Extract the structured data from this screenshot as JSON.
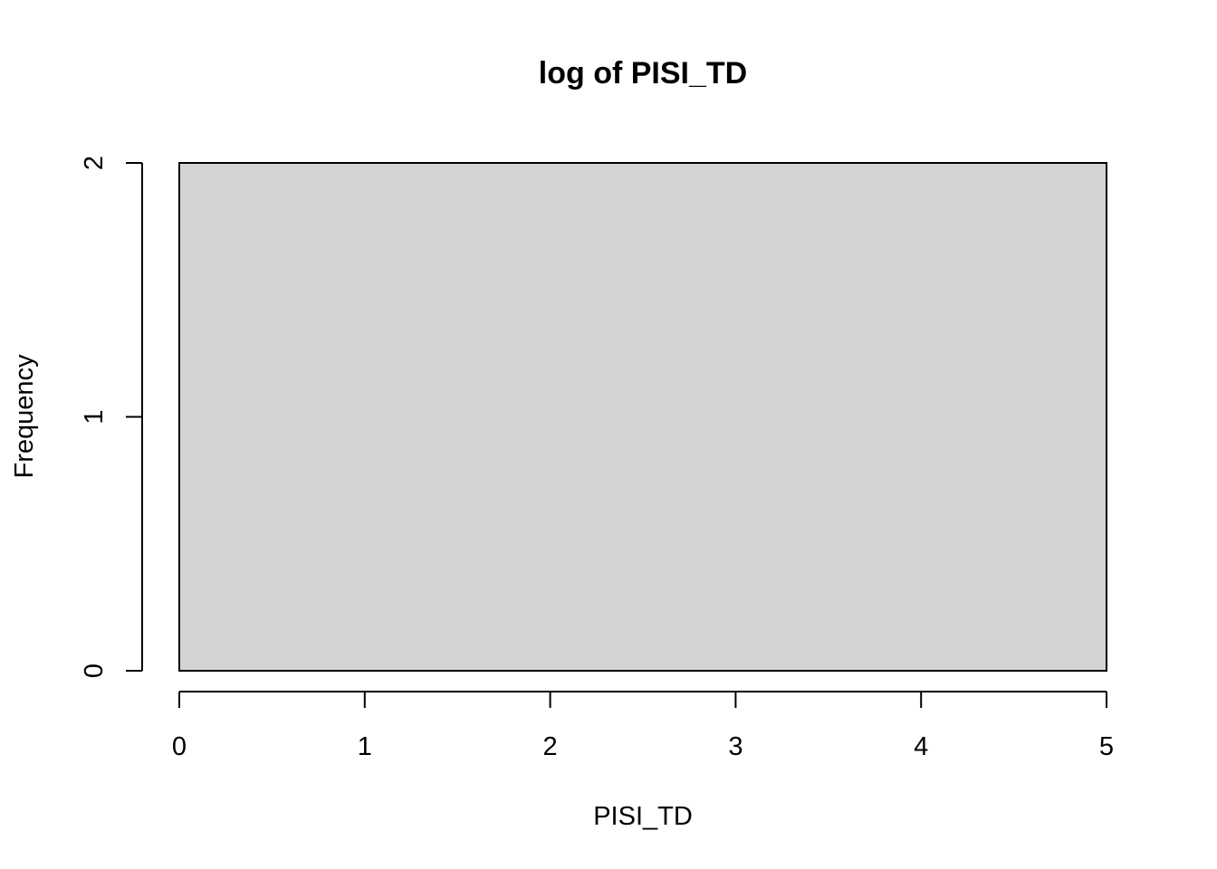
{
  "chart_data": {
    "type": "bar",
    "title": "log of PISI_TD",
    "xlabel": "PISI_TD",
    "ylabel": "Frequency",
    "xlim": [
      0,
      5
    ],
    "ylim": [
      0,
      2
    ],
    "x_ticks": [
      0,
      1,
      2,
      3,
      4,
      5
    ],
    "y_ticks": [
      0,
      1,
      2
    ],
    "bins": [
      {
        "start": 0,
        "end": 5,
        "count": 2
      }
    ],
    "bar_color": "#d3d3d3",
    "grid": false,
    "legend": "none"
  }
}
